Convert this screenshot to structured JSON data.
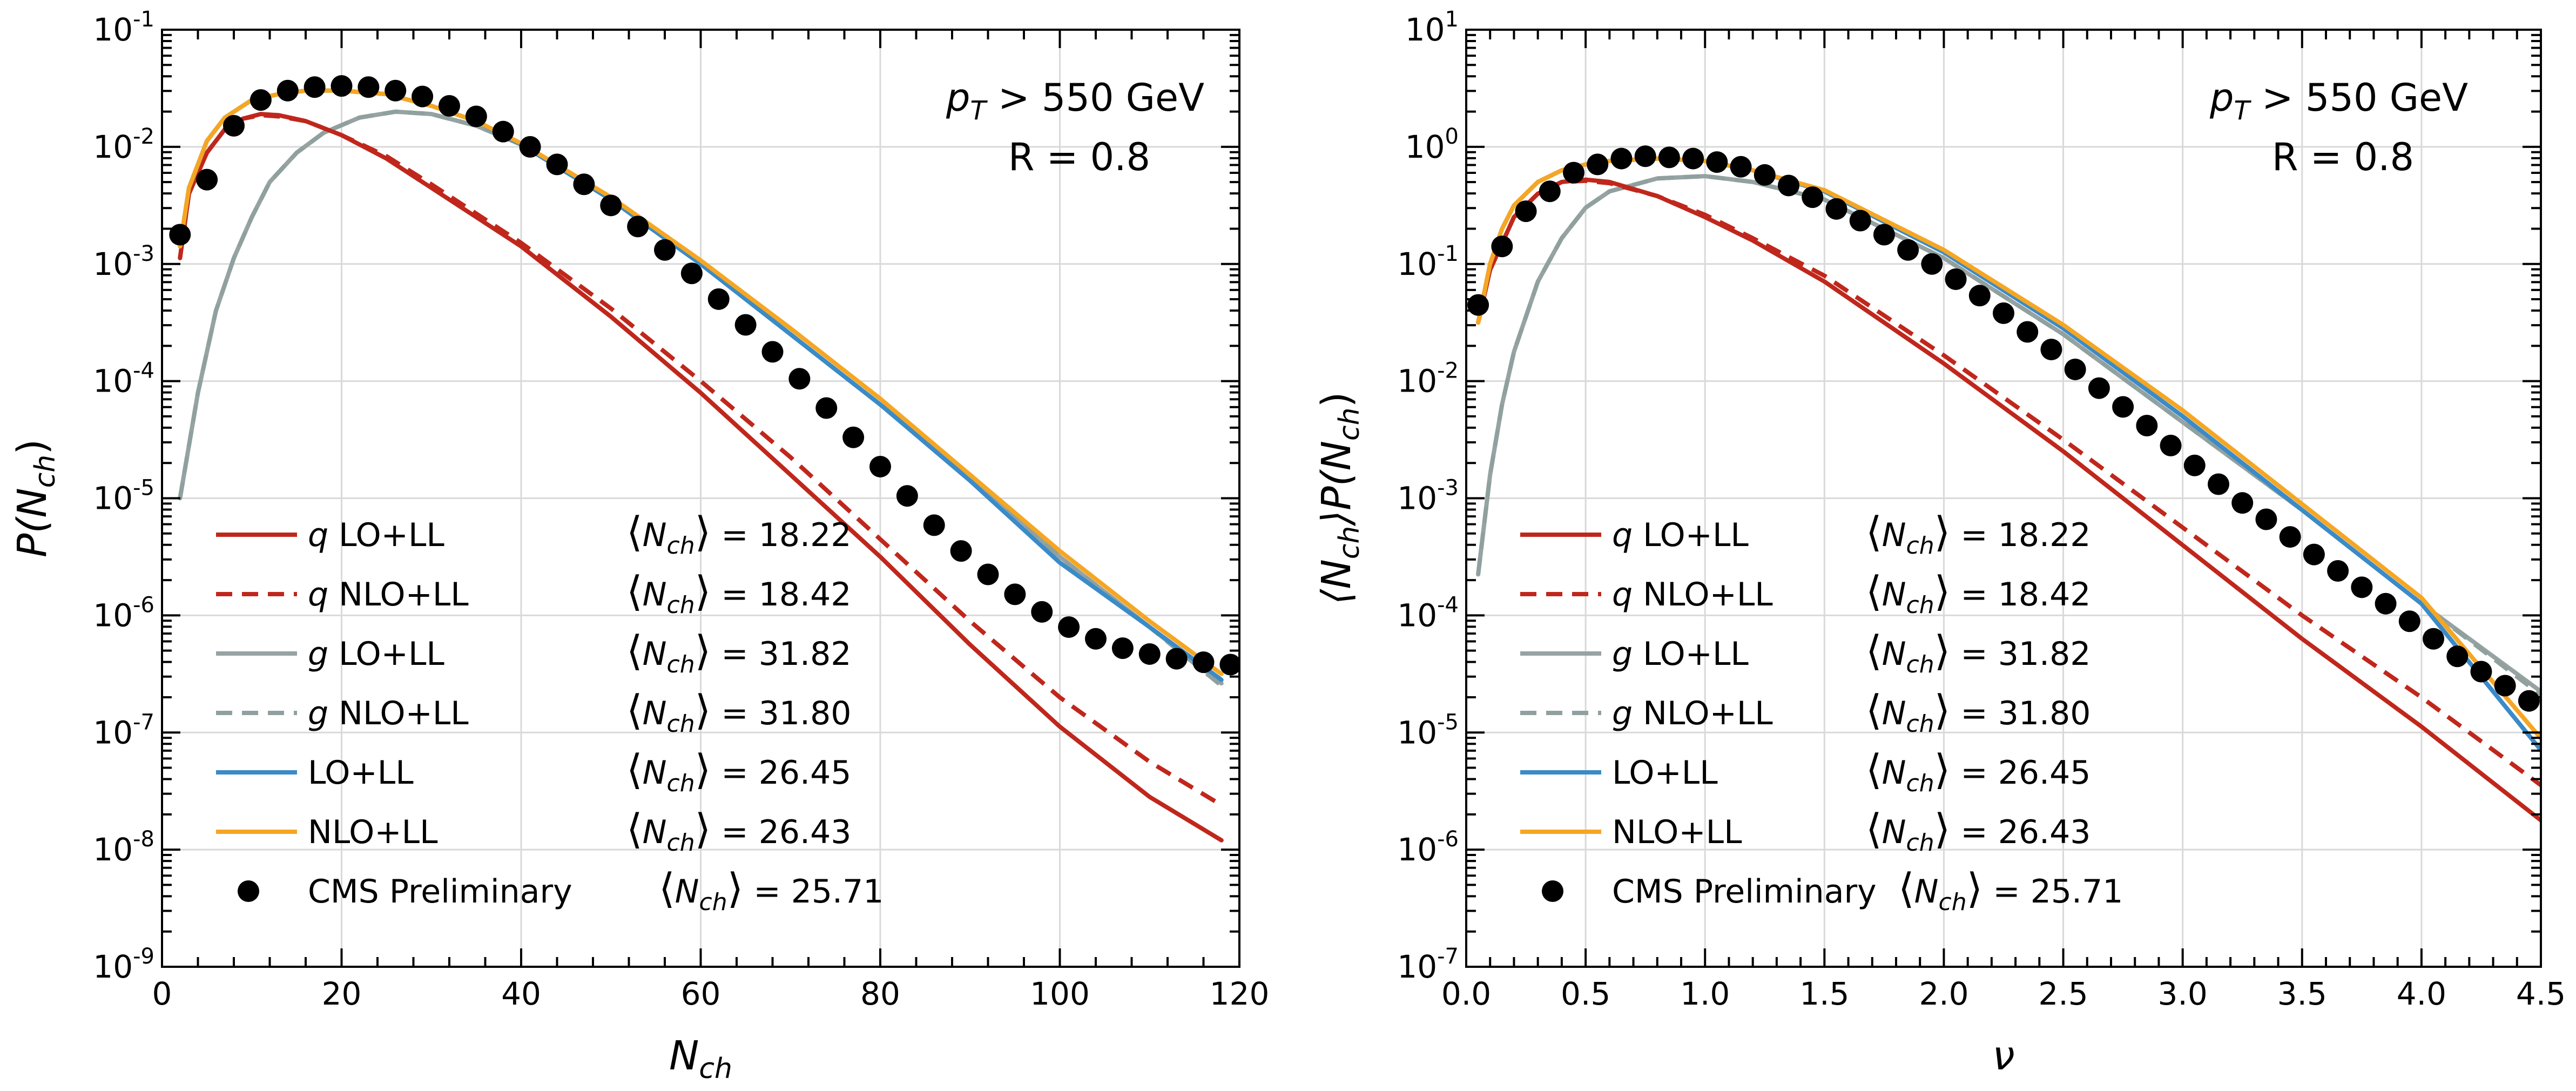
{
  "chart_data": [
    {
      "type": "line",
      "xlabel": "N",
      "xlabel_sub": "ch",
      "ylabel": "P(N",
      "ylabel_sub": "ch",
      "ylabel_close": ")",
      "xlim": [
        0,
        120
      ],
      "ylim_log10": [
        -9,
        -1
      ],
      "xticks": [
        0,
        20,
        40,
        60,
        80,
        100,
        120
      ],
      "xtick_labels": [
        "0",
        "20",
        "40",
        "60",
        "80",
        "100",
        "120"
      ],
      "ytick_exponents": [
        "-9",
        "-8",
        "-7",
        "-6",
        "-5",
        "-4",
        "-3",
        "-2",
        "-1"
      ],
      "ytick_base": "10",
      "annotation": {
        "pt_label": "p",
        "pt_sub": "T",
        "pt_cut": " > 550 GeV",
        "radius": "R = 0.8"
      },
      "legend_position": "lower-left",
      "series": [
        {
          "name": "q LO+LL",
          "label_a": "q  LO+LL",
          "mean_label": "= 18.22",
          "color": "#c0271c",
          "style": "solid",
          "x": [
            2,
            3,
            5,
            7,
            9,
            11,
            13,
            16,
            20,
            25,
            30,
            40,
            50,
            60,
            70,
            80,
            90,
            100,
            110,
            118
          ],
          "log10y": [
            -2.95,
            -2.4,
            -2.05,
            -1.85,
            -1.76,
            -1.72,
            -1.73,
            -1.78,
            -1.9,
            -2.1,
            -2.35,
            -2.85,
            -3.45,
            -4.1,
            -4.8,
            -5.5,
            -6.25,
            -6.95,
            -7.55,
            -7.92
          ]
        },
        {
          "name": "q NLO+LL",
          "label_a": "q NLO+LL",
          "mean_label": "= 18.42",
          "color": "#c0271c",
          "style": "dashed",
          "x": [
            2,
            3,
            5,
            7,
            9,
            11,
            13,
            16,
            20,
            25,
            30,
            40,
            50,
            60,
            70,
            80,
            90,
            100,
            110,
            118
          ],
          "log10y": [
            -2.95,
            -2.4,
            -2.05,
            -1.85,
            -1.76,
            -1.73,
            -1.74,
            -1.78,
            -1.9,
            -2.08,
            -2.32,
            -2.82,
            -3.38,
            -4.0,
            -4.65,
            -5.35,
            -6.05,
            -6.7,
            -7.25,
            -7.62
          ]
        },
        {
          "name": "g LO+LL",
          "label_a": "g  LO+LL",
          "mean_label": "= 31.82",
          "color": "#96a3a2",
          "style": "solid",
          "x": [
            2,
            4,
            6,
            8,
            10,
            12,
            15,
            18,
            22,
            26,
            30,
            35,
            40,
            50,
            60,
            70,
            80,
            90,
            100,
            110,
            118
          ],
          "log10y": [
            -5.0,
            -4.1,
            -3.4,
            -2.95,
            -2.6,
            -2.3,
            -2.05,
            -1.88,
            -1.75,
            -1.7,
            -1.72,
            -1.82,
            -1.98,
            -2.45,
            -3.0,
            -3.6,
            -4.2,
            -4.8,
            -5.5,
            -6.1,
            -6.58
          ]
        },
        {
          "name": "g NLO+LL",
          "label_a": "g NLO+LL",
          "mean_label": "= 31.80",
          "color": "#8fa09e",
          "style": "dashed",
          "x": [
            2,
            4,
            6,
            8,
            10,
            12,
            15,
            18,
            22,
            26,
            30,
            35,
            40,
            50,
            60,
            70,
            80,
            90,
            100,
            110,
            118
          ],
          "log10y": [
            -5.0,
            -4.1,
            -3.4,
            -2.95,
            -2.6,
            -2.3,
            -2.05,
            -1.88,
            -1.75,
            -1.7,
            -1.72,
            -1.82,
            -1.98,
            -2.45,
            -3.0,
            -3.6,
            -4.2,
            -4.8,
            -5.5,
            -6.1,
            -6.6
          ]
        },
        {
          "name": "LO+LL",
          "label_a": "LO+LL",
          "mean_label": "= 26.45",
          "color": "#3a8bc8",
          "style": "solid",
          "x": [
            2,
            3,
            5,
            7,
            10,
            13,
            16,
            20,
            25,
            30,
            35,
            40,
            50,
            60,
            70,
            80,
            90,
            100,
            110,
            118
          ],
          "log10y": [
            -2.85,
            -2.35,
            -1.95,
            -1.75,
            -1.6,
            -1.55,
            -1.52,
            -1.52,
            -1.55,
            -1.65,
            -1.78,
            -1.98,
            -2.45,
            -3.0,
            -3.6,
            -4.2,
            -4.85,
            -5.55,
            -6.1,
            -6.55
          ]
        },
        {
          "name": "NLO+LL",
          "label_a": "NLO+LL",
          "mean_label": "= 26.43",
          "color": "#f5a623",
          "style": "solid",
          "x": [
            2,
            3,
            5,
            7,
            10,
            13,
            16,
            20,
            25,
            30,
            35,
            40,
            50,
            60,
            70,
            80,
            90,
            100,
            110,
            118
          ],
          "log10y": [
            -2.85,
            -2.35,
            -1.95,
            -1.75,
            -1.6,
            -1.55,
            -1.52,
            -1.52,
            -1.55,
            -1.65,
            -1.78,
            -1.97,
            -2.43,
            -2.97,
            -3.55,
            -4.15,
            -4.8,
            -5.45,
            -6.05,
            -6.5
          ]
        },
        {
          "name": "CMS Preliminary",
          "label_a": "CMS Preliminary",
          "mean_label": "= 25.71",
          "color": "#000000",
          "style": "markers",
          "x": [
            2,
            5,
            8,
            11,
            14,
            17,
            20,
            23,
            26,
            29,
            32,
            35,
            38,
            41,
            44,
            47,
            50,
            53,
            56,
            59,
            62,
            65,
            68,
            71,
            74,
            77,
            80,
            83,
            86,
            89,
            92,
            95,
            98,
            101,
            104,
            107,
            110,
            113,
            116,
            119
          ],
          "log10y": [
            -2.75,
            -2.28,
            -1.82,
            -1.6,
            -1.52,
            -1.49,
            -1.48,
            -1.49,
            -1.52,
            -1.57,
            -1.65,
            -1.74,
            -1.87,
            -2.0,
            -2.15,
            -2.32,
            -2.5,
            -2.68,
            -2.88,
            -3.08,
            -3.3,
            -3.52,
            -3.75,
            -3.98,
            -4.23,
            -4.48,
            -4.73,
            -4.98,
            -5.23,
            -5.45,
            -5.65,
            -5.82,
            -5.97,
            -6.1,
            -6.2,
            -6.28,
            -6.33,
            -6.37,
            -6.4,
            -6.42
          ]
        }
      ]
    },
    {
      "type": "line",
      "xlabel": "ν",
      "ylabel": "⟨N",
      "ylabel_sub": "ch",
      "ylabel_mid": "⟩P(N",
      "ylabel_sub2": "ch",
      "ylabel_close": ")",
      "xlim": [
        0,
        4.5
      ],
      "ylim_log10": [
        -7,
        1
      ],
      "xticks": [
        0,
        0.5,
        1.0,
        1.5,
        2.0,
        2.5,
        3.0,
        3.5,
        4.0,
        4.5
      ],
      "xtick_labels": [
        "0.0",
        "0.5",
        "1.0",
        "1.5",
        "2.0",
        "2.5",
        "3.0",
        "3.5",
        "4.0",
        "4.5"
      ],
      "ytick_exponents": [
        "-7",
        "-6",
        "-5",
        "-4",
        "-3",
        "-2",
        "-1",
        "0",
        "1"
      ],
      "ytick_base": "10",
      "annotation": {
        "pt_label": "p",
        "pt_sub": "T",
        "pt_cut": " > 550 GeV",
        "radius": "R = 0.8"
      },
      "legend_position": "lower-left",
      "series": [
        {
          "name": "q LO+LL",
          "label_a": "q LO+LL",
          "mean_label": "= 18.22",
          "color": "#c0271c",
          "style": "solid",
          "x": [
            0.05,
            0.1,
            0.2,
            0.3,
            0.4,
            0.5,
            0.6,
            0.8,
            1.0,
            1.2,
            1.5,
            2.0,
            2.5,
            3.0,
            3.5,
            4.0,
            4.5
          ],
          "log10y": [
            -1.5,
            -1.05,
            -0.6,
            -0.4,
            -0.3,
            -0.28,
            -0.3,
            -0.42,
            -0.6,
            -0.8,
            -1.15,
            -1.85,
            -2.6,
            -3.4,
            -4.2,
            -4.95,
            -5.75
          ]
        },
        {
          "name": "q NLO+LL",
          "label_a": "q NLO+LL",
          "mean_label": "= 18.42",
          "color": "#c0271c",
          "style": "dashed",
          "x": [
            0.05,
            0.1,
            0.2,
            0.3,
            0.4,
            0.5,
            0.6,
            0.8,
            1.0,
            1.2,
            1.5,
            2.0,
            2.5,
            3.0,
            3.5,
            4.0,
            4.5
          ],
          "log10y": [
            -1.5,
            -1.05,
            -0.6,
            -0.4,
            -0.3,
            -0.29,
            -0.31,
            -0.42,
            -0.58,
            -0.78,
            -1.1,
            -1.78,
            -2.5,
            -3.25,
            -4.0,
            -4.7,
            -5.45
          ]
        },
        {
          "name": "g LO+LL",
          "label_a": "g LO+LL",
          "mean_label": "= 31.82",
          "color": "#96a3a2",
          "style": "solid",
          "x": [
            0.05,
            0.1,
            0.15,
            0.2,
            0.3,
            0.4,
            0.5,
            0.6,
            0.8,
            1.0,
            1.2,
            1.5,
            2.0,
            2.5,
            3.0,
            3.5,
            4.0,
            4.5
          ],
          "log10y": [
            -3.65,
            -2.8,
            -2.2,
            -1.75,
            -1.15,
            -0.78,
            -0.52,
            -0.38,
            -0.27,
            -0.25,
            -0.3,
            -0.45,
            -0.95,
            -1.6,
            -2.35,
            -3.1,
            -3.9,
            -4.65
          ]
        },
        {
          "name": "g NLO+LL",
          "label_a": "g NLO+LL",
          "mean_label": "= 31.80",
          "color": "#8fa09e",
          "style": "dashed",
          "x": [
            0.05,
            0.1,
            0.15,
            0.2,
            0.3,
            0.4,
            0.5,
            0.6,
            0.8,
            1.0,
            1.2,
            1.5,
            2.0,
            2.5,
            3.0,
            3.5,
            4.0,
            4.5
          ],
          "log10y": [
            -3.65,
            -2.8,
            -2.2,
            -1.75,
            -1.15,
            -0.78,
            -0.52,
            -0.38,
            -0.27,
            -0.25,
            -0.3,
            -0.45,
            -0.95,
            -1.6,
            -2.35,
            -3.1,
            -3.9,
            -4.68
          ]
        },
        {
          "name": "LO+LL",
          "label_a": "LO+LL",
          "mean_label": "= 26.45",
          "color": "#3a8bc8",
          "style": "solid",
          "x": [
            0.05,
            0.1,
            0.15,
            0.2,
            0.3,
            0.4,
            0.5,
            0.6,
            0.8,
            1.0,
            1.2,
            1.5,
            2.0,
            2.5,
            3.0,
            3.5,
            4.0,
            4.5
          ],
          "log10y": [
            -1.5,
            -1.0,
            -0.7,
            -0.5,
            -0.3,
            -0.2,
            -0.15,
            -0.12,
            -0.1,
            -0.12,
            -0.2,
            -0.38,
            -0.9,
            -1.55,
            -2.3,
            -3.1,
            -3.9,
            -5.15
          ]
        },
        {
          "name": "NLO+LL",
          "label_a": "NLO+LL",
          "mean_label": "= 26.43",
          "color": "#f5a623",
          "style": "solid",
          "x": [
            0.05,
            0.1,
            0.15,
            0.2,
            0.3,
            0.4,
            0.5,
            0.6,
            0.8,
            1.0,
            1.2,
            1.5,
            2.0,
            2.5,
            3.0,
            3.5,
            4.0,
            4.5
          ],
          "log10y": [
            -1.5,
            -1.0,
            -0.7,
            -0.5,
            -0.3,
            -0.2,
            -0.15,
            -0.12,
            -0.1,
            -0.12,
            -0.2,
            -0.37,
            -0.88,
            -1.52,
            -2.25,
            -3.05,
            -3.85,
            -5.05
          ]
        },
        {
          "name": "CMS Preliminary",
          "label_a": "CMS Preliminary",
          "mean_label": "= 25.71",
          "color": "#000000",
          "style": "markers",
          "x": [
            0.05,
            0.15,
            0.25,
            0.35,
            0.45,
            0.55,
            0.65,
            0.75,
            0.85,
            0.95,
            1.05,
            1.15,
            1.25,
            1.35,
            1.45,
            1.55,
            1.65,
            1.75,
            1.85,
            1.95,
            2.05,
            2.15,
            2.25,
            2.35,
            2.45,
            2.55,
            2.65,
            2.75,
            2.85,
            2.95,
            3.05,
            3.15,
            3.25,
            3.35,
            3.45,
            3.55,
            3.65,
            3.75,
            3.85,
            3.95,
            4.05,
            4.15,
            4.25,
            4.35,
            4.45
          ],
          "log10y": [
            -1.35,
            -0.85,
            -0.55,
            -0.38,
            -0.22,
            -0.15,
            -0.1,
            -0.08,
            -0.09,
            -0.1,
            -0.13,
            -0.17,
            -0.24,
            -0.33,
            -0.43,
            -0.53,
            -0.63,
            -0.75,
            -0.88,
            -1.0,
            -1.13,
            -1.27,
            -1.42,
            -1.58,
            -1.73,
            -1.9,
            -2.06,
            -2.22,
            -2.38,
            -2.55,
            -2.72,
            -2.88,
            -3.04,
            -3.18,
            -3.33,
            -3.48,
            -3.62,
            -3.76,
            -3.9,
            -4.05,
            -4.2,
            -4.35,
            -4.48,
            -4.6,
            -4.73
          ]
        }
      ]
    }
  ],
  "legend_mean_symbol": "N",
  "legend_mean_sub": "ch"
}
